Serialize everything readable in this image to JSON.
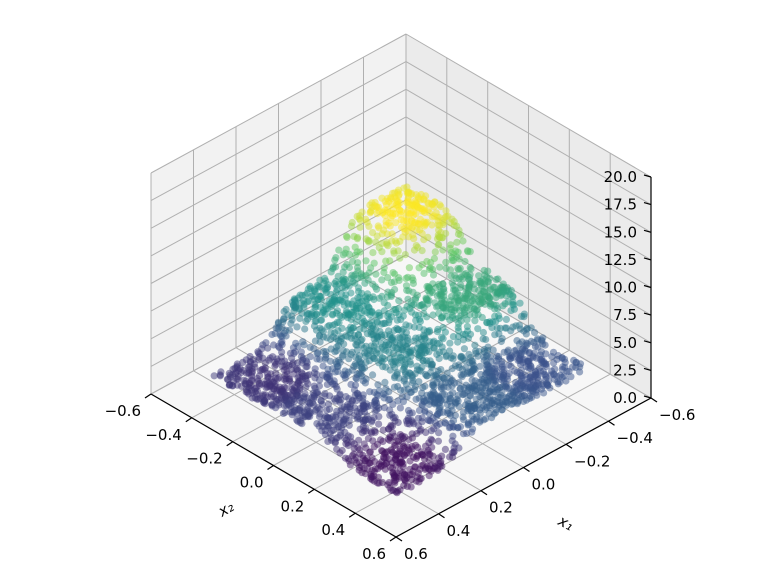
{
  "chart_data": {
    "type": "scatter",
    "projection": "3d",
    "title": "",
    "xlabel": "x₁",
    "ylabel": "x₂",
    "zlabel": "",
    "xlim": [
      -0.6,
      0.6
    ],
    "ylim": [
      -0.6,
      0.6
    ],
    "zlim": [
      0,
      20
    ],
    "x_ticks": [
      "−0.6",
      "−0.4",
      "−0.2",
      "0.0",
      "0.2",
      "0.4",
      "0.6"
    ],
    "y_ticks": [
      "−0.6",
      "−0.4",
      "−0.2",
      "0.0",
      "0.2",
      "0.4",
      "0.6"
    ],
    "z_ticks": [
      "0.0",
      "2.5",
      "5.0",
      "7.5",
      "10.0",
      "12.5",
      "15.0",
      "17.5",
      "20.0"
    ],
    "x_tick_values": [
      -0.6,
      -0.4,
      -0.2,
      0.0,
      0.2,
      0.4,
      0.6
    ],
    "y_tick_values": [
      -0.6,
      -0.4,
      -0.2,
      0.0,
      0.2,
      0.4,
      0.6
    ],
    "z_tick_values": [
      0,
      2.5,
      5,
      7.5,
      10,
      12.5,
      15,
      17.5,
      20
    ],
    "grid": true,
    "colormap": "viridis",
    "colormap_stops": [
      "#440154",
      "#3b528b",
      "#21918c",
      "#5ec962",
      "#fde725"
    ],
    "domain": {
      "x_range": [
        -0.45,
        0.45
      ],
      "y_range": [
        -0.45,
        0.45
      ]
    },
    "surface_samples": [
      {
        "x": -0.3,
        "y": -0.3,
        "z": 10.0
      },
      {
        "x": 0.0,
        "y": 0.0,
        "z": 4.5
      },
      {
        "x": 0.3,
        "y": 0.3,
        "z": 0.5
      },
      {
        "x": -0.3,
        "y": 0.3,
        "z": 2.5
      },
      {
        "x": 0.3,
        "y": -0.3,
        "z": 1.5
      },
      {
        "x": 0.0,
        "y": 0.3,
        "z": 3.0
      },
      {
        "x": 0.3,
        "y": 0.0,
        "z": 2.0
      },
      {
        "x": -0.3,
        "y": 0.0,
        "z": 6.0
      },
      {
        "x": 0.0,
        "y": -0.3,
        "z": 5.0
      }
    ],
    "point_alpha": 0.5
  }
}
